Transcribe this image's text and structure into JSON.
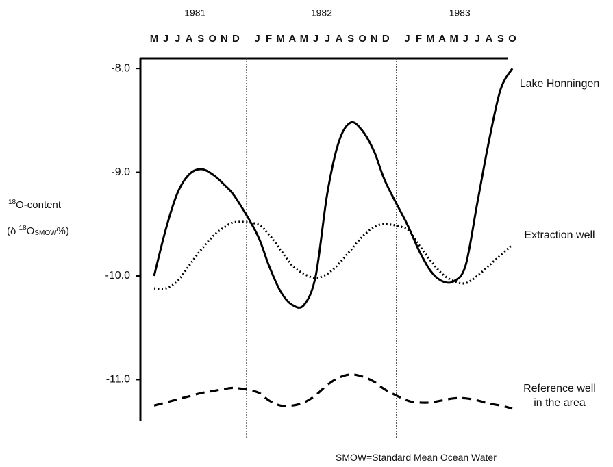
{
  "chart_data": {
    "type": "line",
    "years": [
      "1981",
      "1982",
      "1983"
    ],
    "categories": [
      "M",
      "J",
      "J",
      "A",
      "S",
      "O",
      "N",
      "D",
      "J",
      "F",
      "M",
      "A",
      "M",
      "J",
      "J",
      "A",
      "S",
      "O",
      "N",
      "D",
      "J",
      "F",
      "M",
      "A",
      "M",
      "J",
      "J",
      "A",
      "S",
      "O"
    ],
    "ylabel": [
      [
        "18",
        "O-content"
      ],
      [
        "(δ ",
        "18",
        "O",
        "SMOW",
        "%)"
      ]
    ],
    "ylim": [
      -11.4,
      -7.9
    ],
    "yticks": [
      {
        "value": -8,
        "label": "-8.0"
      },
      {
        "value": -9,
        "label": "-9.0"
      },
      {
        "value": -10,
        "label": "-10.0"
      },
      {
        "value": -11,
        "label": "-11.0"
      }
    ],
    "series": [
      {
        "name": "Lake Honningen",
        "color": "#000000",
        "style": "solid",
        "values": [
          -10.0,
          -9.55,
          -9.2,
          -9.02,
          -8.97,
          -9.02,
          -9.12,
          -9.25,
          -9.6,
          -9.9,
          -10.15,
          -10.28,
          -10.28,
          -10.0,
          -9.2,
          -8.7,
          -8.52,
          -8.6,
          -8.8,
          -9.1,
          -9.5,
          -9.75,
          -9.95,
          -10.05,
          -10.05,
          -9.9,
          -9.3,
          -8.7,
          -8.2,
          -8.0
        ]
      },
      {
        "name": "Extraction well",
        "color": "#000000",
        "style": "dotted",
        "values": [
          -10.12,
          -10.12,
          -10.05,
          -9.9,
          -9.75,
          -9.62,
          -9.53,
          -9.48,
          -9.5,
          -9.6,
          -9.75,
          -9.9,
          -9.98,
          -10.02,
          -9.98,
          -9.88,
          -9.75,
          -9.62,
          -9.53,
          -9.5,
          -9.55,
          -9.7,
          -9.85,
          -9.98,
          -10.05,
          -10.07,
          -10.0,
          -9.9,
          -9.8,
          -9.7
        ]
      },
      {
        "name": "Reference well in the area",
        "color": "#000000",
        "style": "dashed",
        "values": [
          -11.25,
          -11.22,
          -11.19,
          -11.16,
          -11.13,
          -11.11,
          -11.09,
          -11.08,
          -11.12,
          -11.2,
          -11.25,
          -11.25,
          -11.22,
          -11.15,
          -11.05,
          -10.98,
          -10.95,
          -10.97,
          -11.02,
          -11.1,
          -11.2,
          -11.22,
          -11.22,
          -11.2,
          -11.18,
          -11.18,
          -11.2,
          -11.23,
          -11.25,
          -11.28
        ]
      }
    ],
    "footnote": "SMOW=Standard Mean Ocean Water"
  }
}
